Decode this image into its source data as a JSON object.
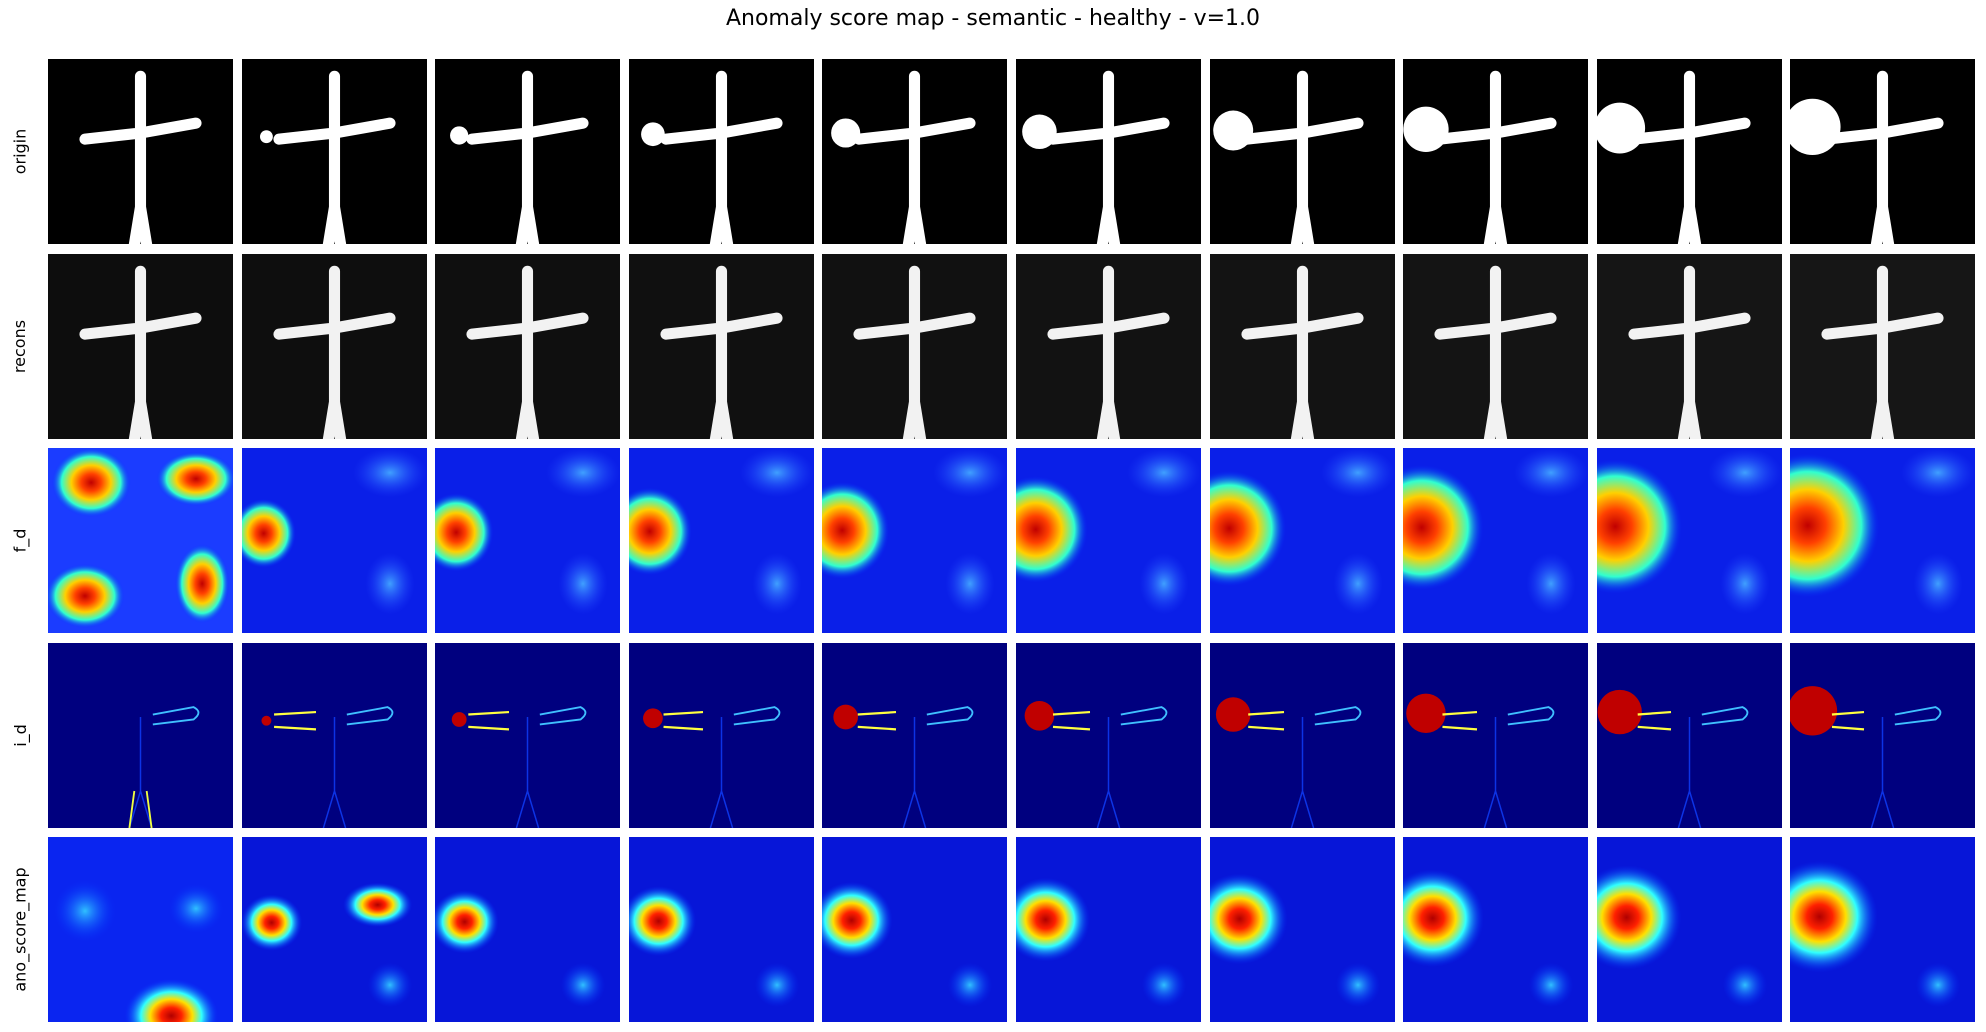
{
  "title": "Anomaly score map - semantic - healthy - v=1.0",
  "rows": [
    {
      "key": "origin",
      "label": "origin"
    },
    {
      "key": "recons",
      "label": "recons"
    },
    {
      "key": "f_d",
      "label": "f_d"
    },
    {
      "key": "i_d",
      "label": "i_d"
    },
    {
      "key": "ano",
      "label": "ano_score_map"
    }
  ],
  "columns": 10,
  "anomaly_strength": [
    0,
    0.1,
    0.2,
    0.3,
    0.4,
    0.5,
    0.6,
    0.7,
    0.8,
    0.9
  ],
  "colormap": "jet",
  "colors": {
    "background": "#000000",
    "figure": "#ffffff",
    "jet_low": "#00007f",
    "jet_high": "#800000"
  }
}
